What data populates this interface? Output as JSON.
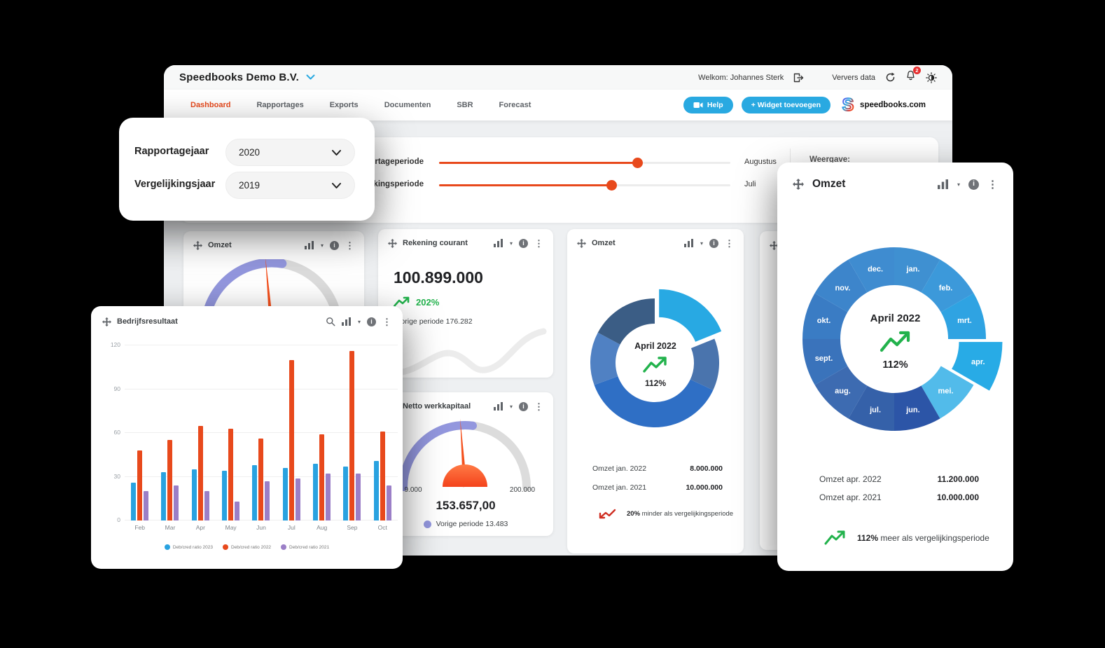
{
  "header": {
    "company": "Speedbooks Demo B.V.",
    "welcome": "Welkom: Johannes Sterk",
    "refresh_label": "Ververs data",
    "notification_count": "2"
  },
  "nav": {
    "tabs": [
      {
        "label": "Dashboard",
        "active": true
      },
      {
        "label": "Rapportages",
        "active": false
      },
      {
        "label": "Exports",
        "active": false
      },
      {
        "label": "Documenten",
        "active": false
      },
      {
        "label": "SBR",
        "active": false
      },
      {
        "label": "Forecast",
        "active": false
      }
    ],
    "help_label": "Help",
    "add_widget_label": "+ Widget toevoegen",
    "brand": "speedbooks.com"
  },
  "year_panel": {
    "report_label": "Rapportagejaar",
    "report_value": "2020",
    "compare_label": "Vergelijkingsjaar",
    "compare_value": "2019"
  },
  "filters": {
    "report_label": "Rapportageperiode",
    "report_value": "Augustus",
    "compare_label": "Vergelijkingsperiode",
    "compare_value": "Juli",
    "weergave_label": "Weergave:"
  },
  "widgets": {
    "omzet_gauge": {
      "title": "Omzet"
    },
    "rekening": {
      "title": "Rekening courant",
      "value": "100.899.000",
      "delta": "202%",
      "subtitle": "Vorige periode 176.282"
    },
    "werkkapitaal": {
      "title": "Netto werkkapitaal",
      "min": "9.000",
      "max": "200.000",
      "value": "153.657,00",
      "legend": "Vorige periode 13.483"
    },
    "omzet_donut": {
      "title": "Omzet",
      "center_title": "April 2022",
      "center_value": "112%",
      "rows": [
        {
          "label": "Omzet jan. 2022",
          "value": "8.000.000"
        },
        {
          "label": "Omzet jan. 2021",
          "value": "10.000.000"
        }
      ],
      "footer_pct": "20%",
      "footer_rest": " minder als vergelijkingsperiode"
    }
  },
  "bars_panel": {
    "title": "Bedrijfsresultaat"
  },
  "donut_panel": {
    "title": "Omzet",
    "center_title": "April 2022",
    "center_value": "112%",
    "rows": [
      {
        "label": "Omzet apr. 2022",
        "value": "11.200.000"
      },
      {
        "label": "Omzet apr. 2021",
        "value": "10.000.000"
      }
    ],
    "footer_pct": "112%",
    "footer_rest": " meer als vergelijkingsperiode"
  },
  "colors": {
    "accent_orange": "#e8491c",
    "accent_blue": "#29a9e1",
    "green": "#22b24c",
    "red": "#cf2e22",
    "purple_gauge": "#9397de",
    "gray_arc": "#dcdcdc"
  },
  "chart_data": [
    {
      "id": "bedrijfsresultaat-bars",
      "type": "bar",
      "title": "Bedrijfsresultaat",
      "categories": [
        "Feb",
        "Mar",
        "Apr",
        "May",
        "Jun",
        "Jul",
        "Aug",
        "Sep",
        "Oct"
      ],
      "series": [
        {
          "name": "Deb/cred ratio 2023",
          "color": "#29a2e0",
          "values": [
            26,
            33,
            35,
            34,
            38,
            36,
            39,
            37,
            41
          ]
        },
        {
          "name": "Deb/cred ratio 2022",
          "color": "#e8491c",
          "values": [
            48,
            55,
            65,
            63,
            56,
            110,
            59,
            116,
            61
          ]
        },
        {
          "name": "Deb/cred ratio 2021",
          "color": "#9b7fc7",
          "values": [
            20,
            24,
            20,
            13,
            27,
            29,
            32,
            32,
            24
          ]
        }
      ],
      "ylim": [
        0,
        120
      ],
      "yticks": [
        0,
        30,
        60,
        90,
        120
      ],
      "grid": true,
      "legend_position": "bottom"
    },
    {
      "id": "omzet-month-donut",
      "type": "pie",
      "center_title": "April 2022",
      "center_value": "112%",
      "segments": [
        {
          "label": "jan.",
          "sweep": 30,
          "color": "#3f90d1",
          "exploded": false
        },
        {
          "label": "feb.",
          "sweep": 30,
          "color": "#3c99da",
          "exploded": false
        },
        {
          "label": "mrt.",
          "sweep": 30,
          "color": "#2fa3e2",
          "exploded": false
        },
        {
          "label": "apr.",
          "sweep": 30,
          "color": "#28abe6",
          "exploded": true
        },
        {
          "label": "mei.",
          "sweep": 30,
          "color": "#52bbea",
          "exploded": false
        },
        {
          "label": "jun.",
          "sweep": 30,
          "color": "#2c55a7",
          "exploded": false
        },
        {
          "label": "jul.",
          "sweep": 30,
          "color": "#3561a9",
          "exploded": false
        },
        {
          "label": "aug.",
          "sweep": 30,
          "color": "#3d6bb1",
          "exploded": false
        },
        {
          "label": "sept.",
          "sweep": 30,
          "color": "#3a73bb",
          "exploded": false
        },
        {
          "label": "okt.",
          "sweep": 30,
          "color": "#3a7cc4",
          "exploded": false
        },
        {
          "label": "nov.",
          "sweep": 30,
          "color": "#3d85cb",
          "exploded": false
        },
        {
          "label": "dec.",
          "sweep": 30,
          "color": "#3f8cd0",
          "exploded": false
        }
      ]
    },
    {
      "id": "omzet-quarter-donut",
      "type": "pie",
      "center_title": "April 2022",
      "center_value": "112%",
      "segments": [
        {
          "label": "",
          "sweep": 68,
          "color": "#28a9e3",
          "exploded": true
        },
        {
          "label": "",
          "sweep": 47,
          "color": "#4a74ad",
          "exploded": false
        },
        {
          "label": "",
          "sweep": 135,
          "color": "#2f6fc5",
          "exploded": false
        },
        {
          "label": "",
          "sweep": 48,
          "color": "#5081c3",
          "exploded": false
        },
        {
          "label": "",
          "sweep": 62,
          "color": "#3b5d85",
          "exploded": false
        }
      ]
    },
    {
      "id": "omzet-gauge",
      "type": "gauge",
      "progress": 0.55,
      "needle_deg": -5
    },
    {
      "id": "werkkapitaal-gauge",
      "type": "gauge",
      "progress": 0.54,
      "needle_deg": -4,
      "min": "9.000",
      "max": "200.000",
      "value": "153.657,00"
    }
  ]
}
